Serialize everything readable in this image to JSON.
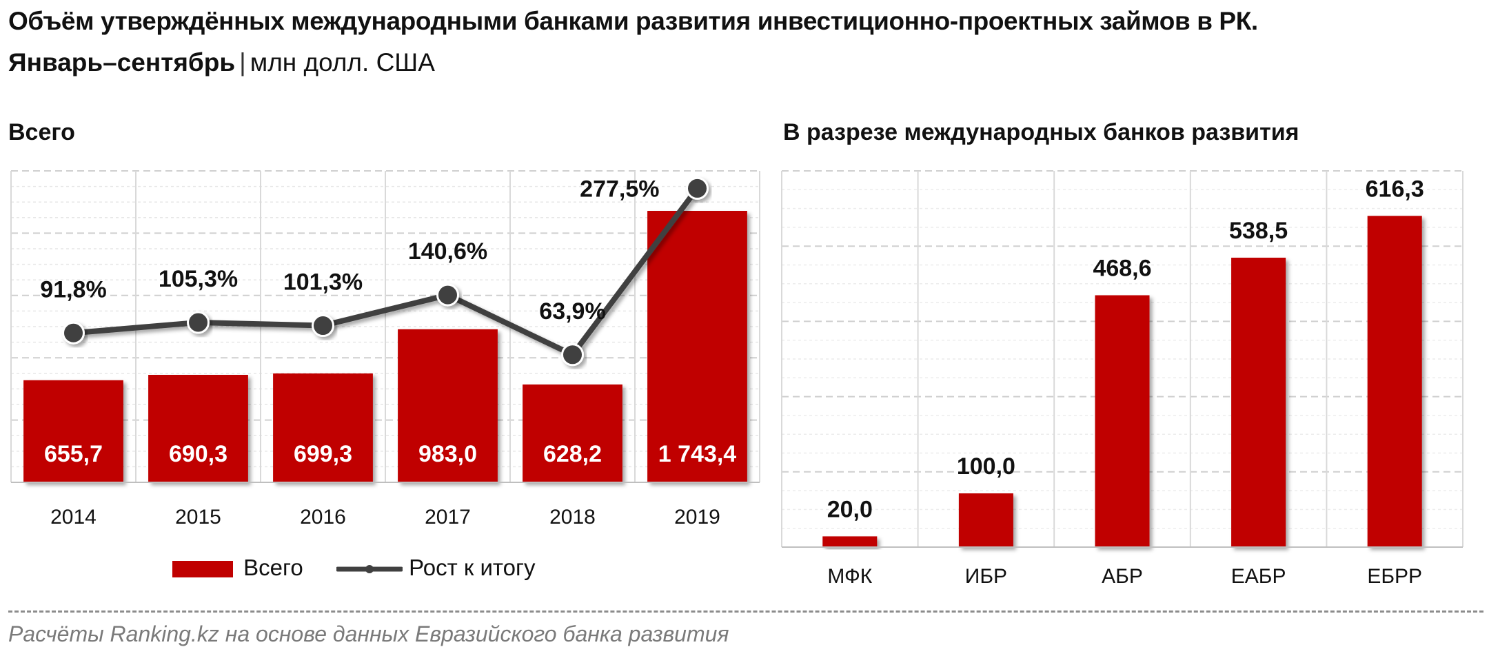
{
  "header": {
    "title": "Объём утверждённых международными банками развития инвестиционно-проектных займов в РК.",
    "subtitle_period": "Январь–сентябрь",
    "subtitle_separator": "|",
    "subtitle_unit": "млн долл. США"
  },
  "footer": {
    "source": "Расчёты Ranking.kz на основе данных Евразийского банка развития"
  },
  "colors": {
    "bar": "#c00000",
    "line": "#404040",
    "grid": "#d9d9d9"
  },
  "chart_data": [
    {
      "type": "bar",
      "title": "Всего",
      "categories": [
        "2014",
        "2015",
        "2016",
        "2017",
        "2018",
        "2019"
      ],
      "series": [
        {
          "name": "Всего",
          "type": "bar",
          "values": [
            655.7,
            690.3,
            699.3,
            983.0,
            628.2,
            1743.4
          ],
          "labels": [
            "655,7",
            "690,3",
            "699,3",
            "983,0",
            "628,2",
            "1 743,4"
          ]
        },
        {
          "name": "Рост к итогу",
          "type": "line",
          "values": [
            91.8,
            105.3,
            101.3,
            140.6,
            63.9,
            277.5
          ],
          "labels": [
            "91,8%",
            "105,3%",
            "101,3%",
            "140,6%",
            "63,9%",
            "277,5%"
          ]
        }
      ],
      "ylim": [
        0,
        2000
      ],
      "y2lim": [
        -100,
        300
      ],
      "grid": true,
      "legend": "bottom"
    },
    {
      "type": "bar",
      "title": "В разрезе международных  банков  развития",
      "categories": [
        "МФК",
        "ИБР",
        "АБР",
        "ЕАБР",
        "ЕБРР"
      ],
      "series": [
        {
          "name": "",
          "values": [
            20.0,
            100.0,
            468.6,
            538.5,
            616.3
          ],
          "labels": [
            "20,0",
            "100,0",
            "468,6",
            "538,5",
            "616,3"
          ]
        }
      ],
      "ylim": [
        0,
        700
      ],
      "grid": true
    }
  ]
}
